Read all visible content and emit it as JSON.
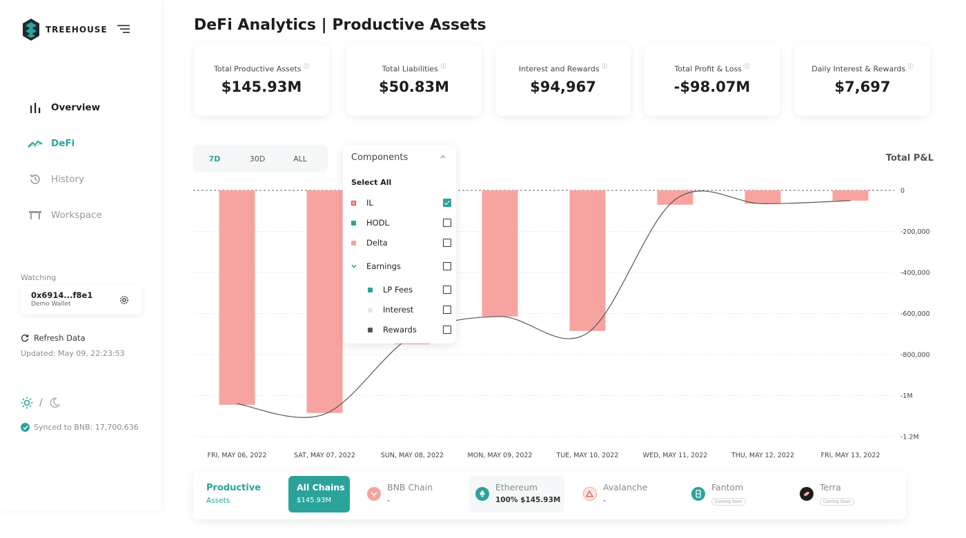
{
  "brand": {
    "name": "TREEHOUSE",
    "accent": "#2ba39a"
  },
  "nav": [
    {
      "label": "Overview",
      "icon": "bar-chart-icon"
    },
    {
      "label": "DeFi",
      "icon": "trend-line-icon"
    },
    {
      "label": "History",
      "icon": "history-icon"
    },
    {
      "label": "Workspace",
      "icon": "workspace-table-icon"
    }
  ],
  "watching": {
    "label": "Watching",
    "address": "0x6914...f8e1",
    "wallet_name": "Demo Wallet"
  },
  "refresh": {
    "label": "Refresh Data",
    "updated": "Updated: May 09, 22:23:53"
  },
  "theme": {
    "separator": "/"
  },
  "synced": "Synced to BNB: 17,700,636",
  "page_title": "DeFi Analytics | Productive Assets",
  "stats": [
    {
      "label": "Total Productive Assets",
      "value": "$145.93M"
    },
    {
      "label": "Total Liabilities",
      "value": "$50.83M"
    },
    {
      "label": "Interest and Rewards",
      "value": "$94,967"
    },
    {
      "label": "Total Profit & Loss",
      "value": "-$98.07M"
    },
    {
      "label": "Daily Interest & Rewards",
      "value": "$7,697"
    }
  ],
  "info_glyph": "ⓘ",
  "range_tabs": [
    "7D",
    "30D",
    "ALL"
  ],
  "components": {
    "header": "Components",
    "select_all": "Select All",
    "items": [
      {
        "label": "IL",
        "color": "#f29d9a",
        "checked": true
      },
      {
        "label": "HODL",
        "color": "#2ba39a",
        "checked": false
      },
      {
        "label": "Delta",
        "color": "#f7a4a1",
        "checked": false
      },
      {
        "label": "Earnings",
        "color": "#2ba39a",
        "checked": false
      },
      {
        "label": "LP Fees",
        "color": "#2ba39a",
        "checked": false
      },
      {
        "label": "Interest",
        "color": "#dddddd",
        "checked": false
      },
      {
        "label": "Rewards",
        "color": "#555555",
        "checked": false
      }
    ]
  },
  "pl_title": "Total P&L",
  "chart_data": {
    "type": "bar",
    "categories": [
      "FRI, MAY 06, 2022",
      "SAT, MAY 07, 2022",
      "SUN, MAY 08, 2022",
      "MON, MAY 09, 2022",
      "TUE, MAY 10, 2022",
      "WED, MAY 11, 2022",
      "THU, MAY 12, 2022",
      "FRI, MAY 13, 2022"
    ],
    "series": [
      {
        "values": [
          -1045000,
          -1085000,
          -750000,
          -615000,
          -685000,
          -70000,
          -65000,
          -50000
        ],
        "color": "#f7a4a1"
      },
      {
        "values": [
          -1040000,
          -1090000,
          -710000,
          -615000,
          -695000,
          -45000,
          -65000,
          -50000
        ],
        "color": "#555555"
      }
    ],
    "y_ticks": [
      "0",
      "-200,000",
      "-400,000",
      "-600,000",
      "-800,000",
      "-1M",
      "-1.2M"
    ],
    "y_tick_values": [
      0,
      -200000,
      -400000,
      -600000,
      -800000,
      -1000000,
      -1200000
    ],
    "ylim": [
      -1200000,
      0
    ],
    "grid": true
  },
  "chain_bar": {
    "title": "Productive",
    "subtitle": "Assets",
    "all_chains": {
      "name": "All Chains",
      "value": "$145.93M"
    },
    "chains": [
      {
        "name": "BNB Chain",
        "value": "-",
        "icon": "bnb-icon",
        "color": "#f6a3a0"
      },
      {
        "name": "Ethereum",
        "value": "100% $145.93M",
        "icon": "ethereum-icon",
        "color": "#2ba39a"
      },
      {
        "name": "Avalanche",
        "value": "-",
        "icon": "avalanche-icon",
        "color": "#f6a3a0"
      },
      {
        "name": "Fantom",
        "value": "Coming Soon",
        "icon": "fantom-icon",
        "color": "#2ba39a"
      },
      {
        "name": "Terra",
        "value": "Coming Soon",
        "icon": "terra-icon",
        "color": "#1d1d1d"
      }
    ]
  }
}
